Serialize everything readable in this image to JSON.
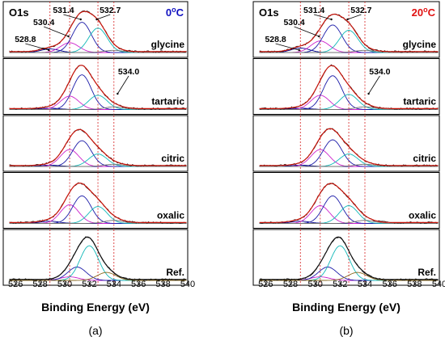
{
  "chart_data": [
    {
      "type": "line",
      "panel_label": "(a)",
      "element_label": "O1s",
      "temperature": "0°C",
      "temperature_value": "0",
      "temperature_unit": "C",
      "temperature_color": "#1010c0",
      "xlabel": "Binding Energy (eV)",
      "ylabel": "",
      "xlim": [
        525,
        540
      ],
      "x_ticks": [
        "526",
        "528",
        "530",
        "532",
        "534",
        "536",
        "538",
        "540"
      ],
      "grid": false,
      "reference_lines_eV": [
        528.8,
        530.4,
        532.7,
        534.0
      ],
      "peak_annotations": [
        {
          "label": "528.8",
          "panel": "glycine"
        },
        {
          "label": "530.4",
          "panel": "glycine"
        },
        {
          "label": "531.4",
          "panel": "glycine"
        },
        {
          "label": "532.7",
          "panel": "glycine"
        },
        {
          "label": "534.0",
          "panel": "tartaric"
        }
      ],
      "component_colors": {
        "528.8": "#00008b",
        "530.4": "#cc22cc",
        "531.4": "#1a1aa8",
        "532.7": "#10b8b8",
        "534.0": "#707070",
        "envelope": "#c8140a"
      },
      "stacks": [
        {
          "name": "glycine",
          "peaks": [
            {
              "center": 528.8,
              "height": 0.08
            },
            {
              "center": 530.4,
              "height": 0.22
            },
            {
              "center": 531.4,
              "height": 0.68
            },
            {
              "center": 532.7,
              "height": 0.55
            },
            {
              "center": 534.0,
              "height": 0.05
            }
          ]
        },
        {
          "name": "tartaric",
          "peaks": [
            {
              "center": 528.8,
              "height": 0.03
            },
            {
              "center": 530.4,
              "height": 0.3
            },
            {
              "center": 531.4,
              "height": 0.78
            },
            {
              "center": 532.7,
              "height": 0.32
            },
            {
              "center": 534.0,
              "height": 0.06
            }
          ]
        },
        {
          "name": "citric",
          "peaks": [
            {
              "center": 528.8,
              "height": 0.03
            },
            {
              "center": 530.4,
              "height": 0.38
            },
            {
              "center": 531.4,
              "height": 0.58
            },
            {
              "center": 532.7,
              "height": 0.28
            },
            {
              "center": 534.0,
              "height": 0.05
            }
          ]
        },
        {
          "name": "oxalic",
          "peaks": [
            {
              "center": 528.8,
              "height": 0.05
            },
            {
              "center": 530.4,
              "height": 0.42
            },
            {
              "center": 531.4,
              "height": 0.62
            },
            {
              "center": 532.7,
              "height": 0.38
            },
            {
              "center": 534.0,
              "height": 0.07
            }
          ]
        },
        {
          "name": "Ref.",
          "peaks": [
            {
              "center": 530.4,
              "height": 0.08
            },
            {
              "center": 531.0,
              "height": 0.3
            },
            {
              "center": 532.0,
              "height": 0.78
            },
            {
              "center": 533.4,
              "height": 0.18
            }
          ]
        }
      ]
    },
    {
      "type": "line",
      "panel_label": "(b)",
      "element_label": "O1s",
      "temperature": "20°C",
      "temperature_value": "20",
      "temperature_unit": "C",
      "temperature_color": "#e01010",
      "xlabel": "Binding Energy (eV)",
      "ylabel": "",
      "xlim": [
        525,
        540
      ],
      "x_ticks": [
        "526",
        "528",
        "530",
        "532",
        "534",
        "536",
        "538",
        "540"
      ],
      "grid": false,
      "reference_lines_eV": [
        528.8,
        530.4,
        532.7,
        534.0
      ],
      "peak_annotations": [
        {
          "label": "528.8",
          "panel": "glycine"
        },
        {
          "label": "530.4",
          "panel": "glycine"
        },
        {
          "label": "531.4",
          "panel": "glycine"
        },
        {
          "label": "532.7",
          "panel": "glycine"
        },
        {
          "label": "534.0",
          "panel": "tartaric"
        }
      ],
      "component_colors": {
        "528.8": "#00008b",
        "530.4": "#cc22cc",
        "531.4": "#1a1aa8",
        "532.7": "#10b8b8",
        "534.0": "#707070",
        "envelope": "#c8140a"
      },
      "stacks": [
        {
          "name": "glycine",
          "peaks": [
            {
              "center": 528.8,
              "height": 0.1
            },
            {
              "center": 530.4,
              "height": 0.26
            },
            {
              "center": 531.4,
              "height": 0.62
            },
            {
              "center": 532.7,
              "height": 0.5
            },
            {
              "center": 534.0,
              "height": 0.05
            }
          ]
        },
        {
          "name": "tartaric",
          "peaks": [
            {
              "center": 528.8,
              "height": 0.03
            },
            {
              "center": 530.4,
              "height": 0.32
            },
            {
              "center": 531.4,
              "height": 0.76
            },
            {
              "center": 532.7,
              "height": 0.34
            },
            {
              "center": 534.0,
              "height": 0.06
            }
          ]
        },
        {
          "name": "citric",
          "peaks": [
            {
              "center": 528.8,
              "height": 0.03
            },
            {
              "center": 530.4,
              "height": 0.38
            },
            {
              "center": 531.4,
              "height": 0.6
            },
            {
              "center": 532.7,
              "height": 0.28
            },
            {
              "center": 534.0,
              "height": 0.05
            }
          ]
        },
        {
          "name": "oxalic",
          "peaks": [
            {
              "center": 528.8,
              "height": 0.05
            },
            {
              "center": 530.4,
              "height": 0.4
            },
            {
              "center": 531.4,
              "height": 0.62
            },
            {
              "center": 532.7,
              "height": 0.4
            },
            {
              "center": 534.0,
              "height": 0.07
            }
          ]
        },
        {
          "name": "Ref.",
          "peaks": [
            {
              "center": 530.4,
              "height": 0.08
            },
            {
              "center": 531.0,
              "height": 0.3
            },
            {
              "center": 532.0,
              "height": 0.78
            },
            {
              "center": 533.4,
              "height": 0.18
            }
          ]
        }
      ]
    }
  ]
}
